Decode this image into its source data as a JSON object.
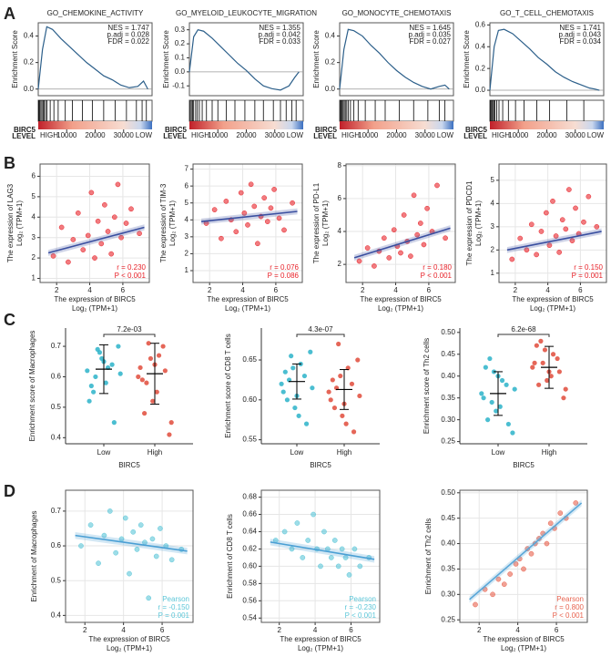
{
  "panel_labels": [
    "A",
    "B",
    "C",
    "D"
  ],
  "chart_data": [
    {
      "type": "line",
      "title": "GO_CHEMOKINE_ACTIVITY",
      "ylabel": "Enrichment Score",
      "annotations": [
        "NES = 1.747",
        "p.adj = 0.028",
        "FDR = 0.022"
      ],
      "x": [
        0,
        1500,
        3000,
        5000,
        8000,
        11000,
        14000,
        17000,
        20000,
        23000,
        26000,
        29000,
        32000,
        35000,
        37000,
        38500
      ],
      "values": [
        0,
        0.3,
        0.47,
        0.45,
        0.38,
        0.32,
        0.26,
        0.2,
        0.15,
        0.1,
        0.07,
        0.03,
        0.01,
        0.02,
        0.06,
        0
      ],
      "hits": [
        200,
        500,
        900,
        1300,
        1700,
        2100,
        2600,
        3100,
        4200,
        5500,
        7000,
        9500,
        12000,
        15500,
        19000,
        23000,
        27000,
        31000,
        34500,
        36500,
        38000
      ],
      "xlim": [
        0,
        40000
      ],
      "xticks": [
        10000,
        20000,
        30000
      ],
      "ylim": [
        -0.05,
        0.5
      ],
      "yticks": [
        {
          "value": 0,
          "label": "0.0"
        },
        0.2,
        0.4
      ],
      "color": "#2c5f8a",
      "rank_label": "BIRC5",
      "level_label": "LEVEL",
      "high_label": "HIGH",
      "low_label": "LOW"
    },
    {
      "type": "line",
      "title": "GO_MYELOID_LEUKOCYTE_MIGRATION",
      "ylabel": "Enrichment Score",
      "annotations": [
        "NES = 1.355",
        "p.adj = 0.042",
        "FDR = 0.033"
      ],
      "x": [
        0,
        1500,
        3000,
        5000,
        8000,
        11000,
        14000,
        17000,
        20000,
        23000,
        26000,
        29000,
        32000,
        35000,
        37000,
        38500
      ],
      "values": [
        0,
        0.25,
        0.3,
        0.29,
        0.24,
        0.18,
        0.12,
        0.06,
        0.01,
        -0.05,
        -0.1,
        -0.12,
        -0.13,
        -0.1,
        -0.04,
        0
      ],
      "hits": [
        300,
        700,
        1100,
        1500,
        2200,
        2800,
        3500,
        4500,
        6000,
        8000,
        10000,
        13000,
        16000,
        19500,
        23000,
        26000,
        29500,
        32000,
        34000,
        36000,
        37500
      ],
      "xlim": [
        0,
        40000
      ],
      "xticks": [
        10000,
        20000,
        30000
      ],
      "ylim": [
        -0.17,
        0.35
      ],
      "yticks": [
        -0.1,
        {
          "value": 0,
          "label": "0.0"
        },
        0.1,
        0.2,
        0.3
      ],
      "color": "#2c5f8a",
      "rank_label": "BIRC5",
      "level_label": "LEVEL",
      "high_label": "HIGH",
      "low_label": "LOW"
    },
    {
      "type": "line",
      "title": "GO_MONOCYTE_CHEMOTAXIS",
      "ylabel": "Enrichment Score",
      "annotations": [
        "NES = 1.645",
        "p.adj = 0.035",
        "FDR = 0.027"
      ],
      "x": [
        0,
        1500,
        3000,
        5000,
        8000,
        11000,
        14000,
        17000,
        20000,
        23000,
        26000,
        29000,
        32000,
        35000,
        37000,
        38500
      ],
      "values": [
        0,
        0.3,
        0.45,
        0.44,
        0.4,
        0.33,
        0.27,
        0.2,
        0.14,
        0.09,
        0.05,
        0.02,
        0,
        0.02,
        0.03,
        0
      ],
      "hits": [
        150,
        450,
        800,
        1200,
        1600,
        2000,
        2500,
        3000,
        3800,
        5000,
        6500,
        9000,
        12500,
        16000,
        21000,
        26000,
        31000,
        35000,
        37000
      ],
      "xlim": [
        0,
        40000
      ],
      "xticks": [
        10000,
        20000,
        30000
      ],
      "ylim": [
        -0.05,
        0.5
      ],
      "yticks": [
        {
          "value": 0,
          "label": "0.0"
        },
        0.2,
        0.4
      ],
      "color": "#2c5f8a",
      "rank_label": "BIRC5",
      "level_label": "LEVEL",
      "high_label": "HIGH",
      "low_label": "LOW"
    },
    {
      "type": "line",
      "title": "GO_T_CELL_CHEMOTAXIS",
      "ylabel": "Enrichment Score",
      "annotations": [
        "NES = 1.741",
        "p.adj = 0.043",
        "FDR = 0.034"
      ],
      "x": [
        0,
        1500,
        3000,
        5000,
        8000,
        11000,
        14000,
        17000,
        20000,
        23000,
        26000,
        29000,
        32000,
        35000,
        37000,
        38500
      ],
      "values": [
        0,
        0.4,
        0.55,
        0.56,
        0.52,
        0.45,
        0.38,
        0.3,
        0.24,
        0.17,
        0.12,
        0.08,
        0.05,
        0.02,
        0.01,
        0
      ],
      "hits": [
        100,
        350,
        700,
        1000,
        1400,
        1800,
        2400,
        3200,
        4500,
        6500,
        9000,
        12000,
        16500,
        21000,
        27000,
        33000
      ],
      "xlim": [
        0,
        40000
      ],
      "xticks": [
        10000,
        20000,
        30000
      ],
      "ylim": [
        -0.05,
        0.62
      ],
      "yticks": [
        {
          "value": 0,
          "label": "0.0"
        },
        0.2,
        0.4,
        0.6
      ],
      "color": "#2c5f8a",
      "rank_label": "BIRC5",
      "level_label": "LEVEL",
      "high_label": "HIGH",
      "low_label": "LOW"
    },
    {
      "type": "scatter",
      "ylabel": "The expression of LAG3",
      "ylabel2": "Log₂ (TPM+1)",
      "xlabel": "The expression of BIRC5",
      "xlabel2": "Log₂ (TPM+1)",
      "xlim": [
        1,
        7.6
      ],
      "xticks": [
        2,
        4,
        6
      ],
      "ylim": [
        0.8,
        6.6
      ],
      "yticks": [
        1,
        2,
        3,
        4,
        5,
        6
      ],
      "grid": true,
      "x": [
        1.8,
        2.3,
        2.7,
        3.0,
        3.3,
        3.6,
        3.9,
        4.1,
        4.3,
        4.5,
        4.7,
        4.9,
        5.1,
        5.3,
        5.5,
        5.7,
        5.9,
        6.2,
        6.5,
        7.0
      ],
      "values": [
        2.1,
        3.5,
        1.8,
        2.9,
        4.2,
        2.4,
        3.1,
        5.2,
        2.0,
        3.8,
        2.7,
        4.6,
        3.3,
        2.2,
        4.0,
        5.6,
        3.0,
        3.7,
        4.4,
        3.2
      ],
      "color": "#e8232a",
      "fit": {
        "x": [
          1.5,
          7.3
        ],
        "values": [
          2.25,
          3.5
        ]
      },
      "fit_color": "#3a4fa0",
      "stats": [
        "r = 0.230",
        "P < 0.001"
      ],
      "stats_color": "#e8232a"
    },
    {
      "type": "scatter",
      "ylabel": "The expression of TIM-3",
      "ylabel2": "Log₂ (TPM+1)",
      "xlabel": "The expression of BIRC5",
      "xlabel2": "Log₂ (TPM+1)",
      "xlim": [
        1,
        7.6
      ],
      "xticks": [
        2,
        4,
        6
      ],
      "ylim": [
        0.3,
        7.3
      ],
      "yticks": [
        1,
        2,
        3,
        4,
        5,
        6,
        7
      ],
      "grid": true,
      "x": [
        1.8,
        2.3,
        2.7,
        3.0,
        3.3,
        3.6,
        3.9,
        4.1,
        4.3,
        4.5,
        4.7,
        4.9,
        5.1,
        5.3,
        5.5,
        5.7,
        5.9,
        6.2,
        6.5,
        7.0
      ],
      "values": [
        3.8,
        4.6,
        2.9,
        5.1,
        4.0,
        3.3,
        5.6,
        4.4,
        3.7,
        6.1,
        4.8,
        2.6,
        4.2,
        5.3,
        3.9,
        4.7,
        5.8,
        4.1,
        3.4,
        5.0
      ],
      "color": "#e8232a",
      "fit": {
        "x": [
          1.5,
          7.3
        ],
        "values": [
          3.9,
          4.5
        ]
      },
      "fit_color": "#3a4fa0",
      "stats": [
        "r = 0.076",
        "P = 0.086"
      ],
      "stats_color": "#e8232a"
    },
    {
      "type": "scatter",
      "ylabel": "The expression of PD-L1",
      "ylabel2": "Log₂ (TPM+1)",
      "xlabel": "The expression of BIRC5",
      "xlabel2": "Log₂ (TPM+1)",
      "xlim": [
        1,
        7.6
      ],
      "xticks": [
        2,
        4,
        6
      ],
      "ylim": [
        0.9,
        8.1
      ],
      "yticks": [
        2,
        4,
        6,
        8
      ],
      "grid": true,
      "x": [
        1.8,
        2.3,
        2.7,
        3.0,
        3.3,
        3.6,
        3.9,
        4.1,
        4.3,
        4.5,
        4.7,
        4.9,
        5.1,
        5.3,
        5.5,
        5.7,
        5.9,
        6.2,
        6.5,
        7.0
      ],
      "values": [
        2.2,
        3.0,
        1.9,
        2.8,
        3.6,
        2.4,
        4.1,
        3.1,
        2.7,
        5.0,
        3.4,
        2.5,
        6.2,
        3.8,
        4.5,
        3.2,
        5.4,
        4.0,
        6.8,
        3.6
      ],
      "color": "#e8232a",
      "fit": {
        "x": [
          1.5,
          7.3
        ],
        "values": [
          2.4,
          4.2
        ]
      },
      "fit_color": "#3a4fa0",
      "stats": [
        "r = 0.180",
        "P < 0.001"
      ],
      "stats_color": "#e8232a"
    },
    {
      "type": "scatter",
      "ylabel": "The expression of PDCD1",
      "ylabel2": "Log₂ (TPM+1)",
      "xlabel": "The expression of BIRC5",
      "xlabel2": "Log₂ (TPM+1)",
      "xlim": [
        1,
        7.6
      ],
      "xticks": [
        2,
        4,
        6
      ],
      "ylim": [
        0.6,
        5.7
      ],
      "yticks": [
        1,
        2,
        3,
        4,
        5
      ],
      "grid": true,
      "x": [
        1.8,
        2.3,
        2.7,
        3.0,
        3.3,
        3.6,
        3.9,
        4.1,
        4.3,
        4.5,
        4.7,
        4.9,
        5.1,
        5.3,
        5.5,
        5.7,
        5.9,
        6.2,
        6.5,
        7.0
      ],
      "values": [
        1.6,
        2.5,
        2.0,
        3.1,
        1.8,
        2.8,
        3.6,
        2.2,
        4.1,
        2.6,
        1.9,
        3.3,
        2.9,
        4.6,
        2.4,
        3.8,
        2.7,
        3.2,
        4.3,
        3.0
      ],
      "color": "#e8232a",
      "fit": {
        "x": [
          1.5,
          7.3
        ],
        "values": [
          2.0,
          2.8
        ]
      },
      "fit_color": "#3a4fa0",
      "stats": [
        "r = 0.150",
        "P = 0.001"
      ],
      "stats_color": "#e8232a"
    },
    {
      "type": "strip",
      "ylabel": "Enrichment score of Macrophages",
      "xlabel": "BIRC5",
      "categories": [
        "Low",
        "High"
      ],
      "pvalue": "7.2e-03",
      "ylim": [
        0.38,
        0.76
      ],
      "yticks": [
        0.4,
        0.5,
        0.6,
        0.7
      ],
      "groups": [
        {
          "color": "#2bb3c9",
          "mean": 0.625,
          "sd": 0.08,
          "values": [
            0.62,
            0.55,
            0.68,
            0.58,
            0.64,
            0.7,
            0.52,
            0.6,
            0.66,
            0.63,
            0.45,
            0.61,
            0.57,
            0.69,
            0.65
          ]
        },
        {
          "color": "#e04b3b",
          "mean": 0.61,
          "sd": 0.1,
          "values": [
            0.6,
            0.48,
            0.66,
            0.55,
            0.7,
            0.41,
            0.63,
            0.58,
            0.52,
            0.67,
            0.62,
            0.45,
            0.59,
            0.71,
            0.64
          ]
        }
      ]
    },
    {
      "type": "strip",
      "ylabel": "Enrichment score of CD8 T cells",
      "xlabel": "BIRC5",
      "categories": [
        "Low",
        "High"
      ],
      "pvalue": "4.3e-07",
      "ylim": [
        0.545,
        0.69
      ],
      "yticks": [
        0.55,
        {
          "value": 0.6,
          "label": "0.60"
        },
        0.65
      ],
      "groups": [
        {
          "color": "#2bb3c9",
          "mean": 0.623,
          "sd": 0.022,
          "values": [
            0.62,
            0.6,
            0.64,
            0.58,
            0.63,
            0.66,
            0.61,
            0.625,
            0.59,
            0.645,
            0.57,
            0.615,
            0.635,
            0.655,
            0.605
          ]
        },
        {
          "color": "#e04b3b",
          "mean": 0.613,
          "sd": 0.025,
          "values": [
            0.61,
            0.59,
            0.63,
            0.57,
            0.62,
            0.65,
            0.6,
            0.615,
            0.58,
            0.64,
            0.56,
            0.605,
            0.625,
            0.67,
            0.595
          ]
        }
      ]
    },
    {
      "type": "strip",
      "ylabel": "Enrichment score of Th2 cells",
      "xlabel": "BIRC5",
      "categories": [
        "Low",
        "High"
      ],
      "pvalue": "6.2e-68",
      "ylim": [
        0.245,
        0.51
      ],
      "yticks": [
        0.25,
        {
          "value": 0.3,
          "label": "0.30"
        },
        0.35,
        {
          "value": 0.4,
          "label": "0.40"
        },
        0.45,
        {
          "value": 0.5,
          "label": "0.50"
        }
      ],
      "groups": [
        {
          "color": "#2bb3c9",
          "mean": 0.36,
          "sd": 0.05,
          "values": [
            0.36,
            0.3,
            0.41,
            0.33,
            0.38,
            0.27,
            0.35,
            0.44,
            0.32,
            0.39,
            0.29,
            0.37,
            0.42,
            0.34,
            0.4
          ]
        },
        {
          "color": "#e04b3b",
          "mean": 0.42,
          "sd": 0.048,
          "values": [
            0.42,
            0.38,
            0.46,
            0.4,
            0.44,
            0.35,
            0.43,
            0.48,
            0.39,
            0.45,
            0.41,
            0.37,
            0.47,
            0.43,
            0.41
          ]
        }
      ]
    },
    {
      "type": "scatter",
      "ylabel": "Enrichment of Macrophages",
      "xlabel": "The expression of BIRC5",
      "xlabel2": "Log₂ (TPM+1)",
      "xlim": [
        1,
        7.6
      ],
      "xticks": [
        2,
        4,
        6
      ],
      "ylim": [
        0.38,
        0.76
      ],
      "yticks": [
        0.4,
        0.5,
        0.6,
        0.7
      ],
      "grid": true,
      "x": [
        1.8,
        2.3,
        2.7,
        3.0,
        3.3,
        3.6,
        3.9,
        4.1,
        4.3,
        4.5,
        4.7,
        4.9,
        5.1,
        5.3,
        5.5,
        5.7,
        5.9,
        6.2,
        6.5,
        7.0
      ],
      "values": [
        0.6,
        0.66,
        0.55,
        0.63,
        0.7,
        0.58,
        0.62,
        0.68,
        0.52,
        0.64,
        0.59,
        0.66,
        0.61,
        0.45,
        0.62,
        0.57,
        0.65,
        0.6,
        0.56,
        0.59
      ],
      "color": "#5cc6d8",
      "fit": {
        "x": [
          1.5,
          7.3
        ],
        "values": [
          0.63,
          0.585
        ]
      },
      "fit_color": "#4a9fd4",
      "stats": [
        "Pearson",
        "r = -0.150",
        "P = 0.001"
      ],
      "stats_color": "#5cc6d8"
    },
    {
      "type": "scatter",
      "ylabel": "Enrichment of CD8 T cells",
      "xlabel": "The expression of BIRC5",
      "xlabel2": "Log₂ (TPM+1)",
      "xlim": [
        1,
        7.6
      ],
      "xticks": [
        2,
        4,
        6
      ],
      "ylim": [
        0.535,
        0.688
      ],
      "yticks": [
        0.54,
        0.56,
        0.58,
        {
          "value": 0.6,
          "label": "0.60"
        },
        0.62,
        0.64,
        0.66,
        0.68
      ],
      "grid": true,
      "x": [
        1.8,
        2.3,
        2.7,
        3.0,
        3.3,
        3.6,
        3.9,
        4.1,
        4.3,
        4.5,
        4.7,
        4.9,
        5.1,
        5.3,
        5.5,
        5.7,
        5.9,
        6.2,
        6.5,
        7.0
      ],
      "values": [
        0.63,
        0.64,
        0.62,
        0.65,
        0.61,
        0.63,
        0.66,
        0.62,
        0.6,
        0.64,
        0.62,
        0.61,
        0.63,
        0.6,
        0.62,
        0.61,
        0.59,
        0.62,
        0.6,
        0.61
      ],
      "color": "#5cc6d8",
      "fit": {
        "x": [
          1.5,
          7.3
        ],
        "values": [
          0.628,
          0.608
        ]
      },
      "fit_color": "#4a9fd4",
      "stats": [
        "Pearson",
        "r = -0.230",
        "P < 0.001"
      ],
      "stats_color": "#5cc6d8"
    },
    {
      "type": "scatter",
      "ylabel": "Enrichment of Th2 cells",
      "xlabel": "The expression of BIRC5",
      "xlabel2": "Log₂ (TPM+1)",
      "xlim": [
        1,
        7.6
      ],
      "xticks": [
        2,
        4,
        6
      ],
      "ylim": [
        0.245,
        0.505
      ],
      "yticks": [
        0.25,
        {
          "value": 0.3,
          "label": "0.30"
        },
        0.35,
        {
          "value": 0.4,
          "label": "0.40"
        },
        0.45,
        {
          "value": 0.5,
          "label": "0.50"
        }
      ],
      "grid": true,
      "x": [
        1.8,
        2.3,
        2.7,
        3.0,
        3.3,
        3.6,
        3.9,
        4.1,
        4.3,
        4.5,
        4.7,
        4.9,
        5.1,
        5.3,
        5.5,
        5.7,
        5.9,
        6.2,
        6.5,
        7.0
      ],
      "values": [
        0.28,
        0.31,
        0.3,
        0.33,
        0.32,
        0.34,
        0.36,
        0.37,
        0.35,
        0.39,
        0.38,
        0.4,
        0.41,
        0.42,
        0.4,
        0.44,
        0.43,
        0.46,
        0.45,
        0.48
      ],
      "color": "#e8634f",
      "fit": {
        "x": [
          1.5,
          7.3
        ],
        "values": [
          0.29,
          0.48
        ]
      },
      "fit_color": "#5aa7d8",
      "stats": [
        "Pearson",
        "r = 0.800",
        "P < 0.001"
      ],
      "stats_color": "#e8634f"
    }
  ]
}
